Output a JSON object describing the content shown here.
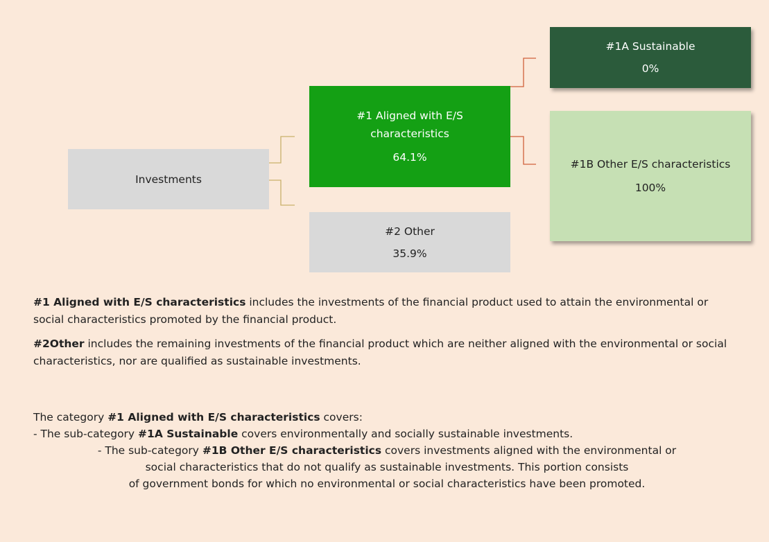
{
  "nodes": {
    "investments": {
      "label": "Investments"
    },
    "aligned": {
      "label": "#1 Aligned with E/S characteristics",
      "share": "64.1%"
    },
    "other": {
      "label": "#2 Other",
      "share": "35.9%"
    },
    "sustainable": {
      "label": "#1A Sustainable",
      "share": "0%"
    },
    "other_es": {
      "label": "#1B Other E/S characteristics",
      "share": "100%"
    }
  },
  "notes": {
    "aligned": {
      "term": "#1 Aligned with E/S characteristics",
      "text": " includes the investments of the financial product used to attain the environmental or social characteristics promoted by the financial product."
    },
    "other": {
      "term": "#2Other",
      "text": " includes the remaining investments of the financial product which are neither aligned with the environmental or social characteristics, nor are qualified as sustainable investments."
    },
    "category": {
      "lines": [
        {
          "pre": "The category ",
          "term": "#1 Aligned with E/S characteristics",
          "post": " covers:"
        },
        {
          "pre": "- The sub-category ",
          "term": "#1A Sustainable",
          "post": " covers environmentally and socially sustainable investments."
        },
        {
          "pre": "- The sub-category ",
          "term": "#1B Other E/S characteristics",
          "post": " covers investments aligned with the environmental or"
        },
        {
          "text": "social characteristics that do not qualify as sustainable investments. This portion consists"
        },
        {
          "text": "of government bonds for which no environmental or social characteristics have been promoted."
        }
      ]
    }
  }
}
